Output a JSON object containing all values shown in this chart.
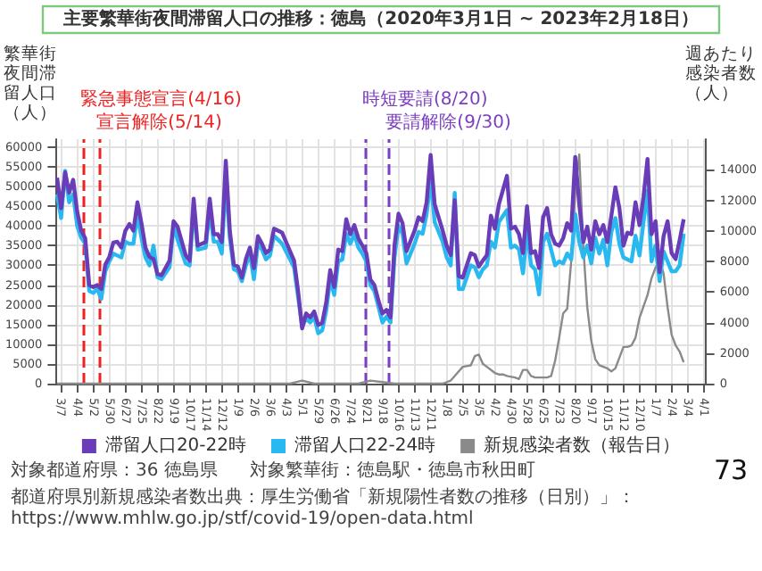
{
  "chart_data": {
    "type": "line",
    "title": "主要繁華街夜間滞留人口の推移：徳島（2020年3月1日 ~ 2023年2月18日）",
    "ylabel": "繁華街夜間滞留人口（人）",
    "y2label": "週あたり感染者数（人）",
    "x": [
      "2020-02-29",
      "2020-03-07",
      "2020-03-14",
      "2020-03-21",
      "2020-03-28",
      "2020-04-04",
      "2020-04-11",
      "2020-04-18",
      "2020-04-25",
      "2020-05-02",
      "2020-05-09",
      "2020-05-16",
      "2020-05-23",
      "2020-05-30",
      "2020-06-06",
      "2020-06-13",
      "2020-06-20",
      "2020-06-27",
      "2020-07-04",
      "2020-07-11",
      "2020-07-18",
      "2020-07-25",
      "2020-08-01",
      "2020-08-08",
      "2020-08-15",
      "2020-08-22",
      "2020-08-29",
      "2020-09-12",
      "2020-09-19",
      "2020-09-26",
      "2020-10-10",
      "2020-10-17",
      "2020-10-24",
      "2020-10-31",
      "2020-11-14",
      "2020-11-21",
      "2020-11-28",
      "2020-12-05",
      "2020-12-12",
      "2020-12-19",
      "2020-12-26",
      "2021-01-02",
      "2021-01-09",
      "2021-01-16",
      "2021-01-23",
      "2021-01-30",
      "2021-02-06",
      "2021-02-13",
      "2021-02-20",
      "2021-02-27",
      "2021-03-06",
      "2021-03-13",
      "2021-03-20",
      "2021-03-27",
      "2021-04-10",
      "2021-04-17",
      "2021-04-24",
      "2021-05-01",
      "2021-05-08",
      "2021-05-15",
      "2021-05-22",
      "2021-05-29",
      "2021-06-05",
      "2021-06-12",
      "2021-06-19",
      "2021-06-26",
      "2021-07-03",
      "2021-07-10",
      "2021-07-17",
      "2021-07-24",
      "2021-07-31",
      "2021-08-07",
      "2021-08-14",
      "2021-08-21",
      "2021-08-28",
      "2021-09-04",
      "2021-09-11",
      "2021-09-18",
      "2021-09-25",
      "2021-10-02",
      "2021-10-09",
      "2021-10-16",
      "2021-10-23",
      "2021-10-30",
      "2021-11-13",
      "2021-11-20",
      "2021-11-27",
      "2021-12-04",
      "2021-12-11",
      "2021-12-18",
      "2022-01-01",
      "2022-01-08",
      "2022-01-15",
      "2022-01-22",
      "2022-01-29",
      "2022-02-05",
      "2022-02-19",
      "2022-02-26",
      "2022-03-05",
      "2022-03-12",
      "2022-03-19",
      "2022-03-26",
      "2022-04-02",
      "2022-04-09",
      "2022-04-23",
      "2022-04-30",
      "2022-05-07",
      "2022-05-14",
      "2022-05-21",
      "2022-05-28",
      "2022-06-04",
      "2022-06-11",
      "2022-06-18",
      "2022-06-25",
      "2022-07-02",
      "2022-07-09",
      "2022-07-16",
      "2022-07-23",
      "2022-07-30",
      "2022-08-06",
      "2022-08-13",
      "2022-08-20",
      "2022-08-27",
      "2022-09-03",
      "2022-09-10",
      "2022-09-17",
      "2022-09-24",
      "2022-10-01",
      "2022-10-08",
      "2022-10-15",
      "2022-10-22",
      "2022-10-29",
      "2022-11-05",
      "2022-11-12",
      "2022-11-19",
      "2022-11-26",
      "2022-12-03",
      "2022-12-10",
      "2022-12-17",
      "2022-12-24",
      "2022-12-31",
      "2023-01-07",
      "2023-01-14",
      "2023-01-21",
      "2023-01-28",
      "2023-02-04",
      "2023-02-11",
      "2023-02-18",
      "2023-02-25"
    ],
    "series": [
      {
        "name": "滞留人口20-22時",
        "color": "#6a3db8",
        "values": [
          52200,
          44500,
          53600,
          48400,
          51700,
          43600,
          38800,
          36900,
          25000,
          24500,
          25000,
          24000,
          30200,
          32100,
          35800,
          36000,
          34500,
          38800,
          40500,
          38800,
          46000,
          40700,
          34500,
          32100,
          31600,
          27800,
          27500,
          31200,
          41200,
          39800,
          32600,
          31200,
          46900,
          35000,
          35900,
          46900,
          37900,
          37900,
          35900,
          56500,
          38800,
          30200,
          29700,
          26900,
          31600,
          34500,
          29300,
          37400,
          35500,
          33100,
          34000,
          39300,
          38800,
          38300,
          33600,
          31200,
          23500,
          14000,
          17800,
          16800,
          18300,
          14900,
          15400,
          20600,
          28800,
          24500,
          34000,
          33600,
          41700,
          37900,
          40200,
          36900,
          35000,
          33100,
          26400,
          25000,
          21100,
          17800,
          18700,
          16800,
          35000,
          43100,
          40700,
          33600,
          38800,
          42200,
          41200,
          46000,
          58000,
          45500,
          38800,
          35000,
          32600,
          46500,
          27300,
          26900,
          33100,
          32600,
          29700,
          31200,
          32600,
          42600,
          39300,
          45500,
          52700,
          39300,
          39800,
          37900,
          33100,
          45000,
          33100,
          33600,
          29300,
          42200,
          44500,
          37900,
          35500,
          35000,
          36900,
          40700,
          38800,
          57500,
          45500,
          35900,
          39800,
          34000,
          41200,
          37900,
          40200,
          35900,
          42600,
          49800,
          44500,
          35000,
          38300,
          37900,
          46000,
          40200,
          47400,
          57000,
          37900,
          41200,
          28300,
          37400,
          41200,
          33100,
          31600,
          36400,
          41700
        ]
      },
      {
        "name": "滞留人口22-24時",
        "color": "#29b8ef",
        "values": [
          48000,
          42000,
          54000,
          46000,
          48000,
          40000,
          37000,
          35500,
          23500,
          23000,
          24000,
          21500,
          28500,
          31000,
          33000,
          32500,
          32000,
          36000,
          35500,
          35500,
          43000,
          37000,
          32000,
          30000,
          35000,
          27000,
          26500,
          29500,
          40000,
          36500,
          30500,
          30000,
          45000,
          34000,
          34500,
          44000,
          36000,
          36000,
          33000,
          52000,
          37000,
          29000,
          28500,
          26000,
          30000,
          33000,
          26500,
          35500,
          34000,
          31500,
          32500,
          37500,
          36500,
          35500,
          31500,
          29500,
          22000,
          14500,
          16500,
          15500,
          17000,
          12800,
          13500,
          18500,
          26500,
          22500,
          31000,
          31500,
          38000,
          35500,
          38000,
          34500,
          33000,
          31000,
          25000,
          23500,
          19500,
          15500,
          17000,
          15500,
          32000,
          40000,
          38000,
          30500,
          35500,
          38500,
          38000,
          43000,
          52000,
          41000,
          36000,
          32000,
          30000,
          48400,
          24000,
          24000,
          30000,
          29500,
          27000,
          29000,
          30000,
          36000,
          34500,
          41000,
          44000,
          34500,
          35000,
          34000,
          28000,
          39000,
          30000,
          29000,
          22600,
          36000,
          38000,
          34000,
          30000,
          31000,
          30500,
          33000,
          31500,
          43000,
          36000,
          32000,
          35000,
          30500,
          37000,
          33000,
          36500,
          30000,
          38500,
          42000,
          35500,
          32000,
          31500,
          31000,
          37500,
          32500,
          41000,
          49000,
          31000,
          35000,
          26000,
          33500,
          31000,
          28500,
          28500,
          30000,
          38000
        ]
      },
      {
        "name": "新規感染者数（報告日）",
        "color": "#8a8a8a",
        "axis": "y2",
        "x": [
          "2020-02-29",
          "2021-04-10",
          "2021-05-01",
          "2021-05-22",
          "2021-08-07",
          "2021-08-28",
          "2021-09-18",
          "2021-10-09",
          "2022-01-01",
          "2022-01-15",
          "2022-02-05",
          "2022-02-19",
          "2022-02-26",
          "2022-03-05",
          "2022-03-12",
          "2022-03-19",
          "2022-04-02",
          "2022-04-09",
          "2022-04-16",
          "2022-04-23",
          "2022-05-07",
          "2022-05-14",
          "2022-05-21",
          "2022-05-28",
          "2022-06-04",
          "2022-06-11",
          "2022-06-18",
          "2022-07-02",
          "2022-07-09",
          "2022-07-16",
          "2022-07-23",
          "2022-07-30",
          "2022-08-06",
          "2022-08-13",
          "2022-08-20",
          "2022-08-27",
          "2022-09-03",
          "2022-09-10",
          "2022-09-17",
          "2022-09-24",
          "2022-10-01",
          "2022-10-08",
          "2022-10-15",
          "2022-10-22",
          "2022-10-29",
          "2022-11-05",
          "2022-11-12",
          "2022-11-19",
          "2022-11-26",
          "2022-12-03",
          "2022-12-10",
          "2022-12-24",
          "2022-12-31",
          "2023-01-07",
          "2023-01-14",
          "2023-01-21",
          "2023-01-28",
          "2023-02-04",
          "2023-02-11",
          "2023-02-18",
          "2023-02-25"
        ],
        "values": [
          0,
          0,
          200,
          0,
          0,
          200,
          100,
          0,
          0,
          200,
          1100,
          1200,
          1800,
          1900,
          1300,
          1100,
          700,
          600,
          600,
          500,
          400,
          300,
          900,
          900,
          500,
          400,
          400,
          400,
          500,
          1500,
          3000,
          4600,
          4900,
          8000,
          12500,
          15000,
          9000,
          5000,
          2800,
          1600,
          1200,
          1100,
          1000,
          800,
          1000,
          1700,
          2400,
          2400,
          2500,
          3000,
          4300,
          5800,
          6900,
          7600,
          8100,
          7200,
          5000,
          3200,
          2500,
          2100,
          1400
        ]
      }
    ],
    "xlim": [
      "2020-02-28",
      "2023-04-04"
    ],
    "xticks": [
      {
        "value": "2020-03-07",
        "label": "3/7"
      },
      {
        "value": "2020-04-04",
        "label": "4/4"
      },
      {
        "value": "2020-05-02",
        "label": "5/2"
      },
      {
        "value": "2020-05-30",
        "label": "5/30"
      },
      {
        "value": "2020-06-27",
        "label": "6/27"
      },
      {
        "value": "2020-07-25",
        "label": "7/25"
      },
      {
        "value": "2020-08-22",
        "label": "8/22"
      },
      {
        "value": "2020-09-19",
        "label": "9/19"
      },
      {
        "value": "2020-10-17",
        "label": "10/17"
      },
      {
        "value": "2020-11-14",
        "label": "11/14"
      },
      {
        "value": "2020-12-12",
        "label": "12/12"
      },
      {
        "value": "2021-01-09",
        "label": "1/9"
      },
      {
        "value": "2021-02-06",
        "label": "2/6"
      },
      {
        "value": "2021-03-06",
        "label": "3/6"
      },
      {
        "value": "2021-04-03",
        "label": "4/3"
      },
      {
        "value": "2021-05-01",
        "label": "5/1"
      },
      {
        "value": "2021-05-29",
        "label": "5/29"
      },
      {
        "value": "2021-06-26",
        "label": "6/26"
      },
      {
        "value": "2021-07-24",
        "label": "7/24"
      },
      {
        "value": "2021-08-21",
        "label": "8/21"
      },
      {
        "value": "2021-09-18",
        "label": "9/18"
      },
      {
        "value": "2021-10-16",
        "label": "10/16"
      },
      {
        "value": "2021-11-13",
        "label": "11/13"
      },
      {
        "value": "2021-12-11",
        "label": "12/11"
      },
      {
        "value": "2022-01-08",
        "label": "1/8"
      },
      {
        "value": "2022-02-05",
        "label": "2/5"
      },
      {
        "value": "2022-03-05",
        "label": "3/5"
      },
      {
        "value": "2022-04-02",
        "label": "4/2"
      },
      {
        "value": "2022-04-30",
        "label": "4/30"
      },
      {
        "value": "2022-05-28",
        "label": "5/28"
      },
      {
        "value": "2022-06-25",
        "label": "6/25"
      },
      {
        "value": "2022-07-23",
        "label": "7/23"
      },
      {
        "value": "2022-08-20",
        "label": "8/20"
      },
      {
        "value": "2022-09-17",
        "label": "9/17"
      },
      {
        "value": "2022-10-15",
        "label": "10/15"
      },
      {
        "value": "2022-11-12",
        "label": "11/12"
      },
      {
        "value": "2022-12-10",
        "label": "12/10"
      },
      {
        "value": "2023-01-07",
        "label": "1/7"
      },
      {
        "value": "2023-02-04",
        "label": "2/4"
      },
      {
        "value": "2023-03-04",
        "label": "3/4"
      },
      {
        "value": "2023-04-01",
        "label": "4/1"
      }
    ],
    "ylim": [
      0,
      62000
    ],
    "yticks": [
      0,
      5000,
      10000,
      15000,
      20000,
      25000,
      30000,
      35000,
      40000,
      45000,
      50000,
      55000,
      60000
    ],
    "y2lim": [
      0,
      16000
    ],
    "y2ticks": [
      0,
      2000,
      4000,
      6000,
      8000,
      10000,
      12000,
      14000
    ],
    "ref_lines": [
      {
        "axis": "x",
        "value": "2020-04-16",
        "label": "緊急事態宣言(4/16)",
        "color": "#ee2222",
        "line_style": "dashed"
      },
      {
        "axis": "x",
        "value": "2020-05-14",
        "label": "宣言解除(5/14)",
        "color": "#ee2222",
        "line_style": "dashed"
      },
      {
        "axis": "x",
        "value": "2021-08-20",
        "label": "時短要請(8/20)",
        "color": "#7b3fc0",
        "line_style": "dashed"
      },
      {
        "axis": "x",
        "value": "2021-09-30",
        "label": "要請解除(9/30)",
        "color": "#7b3fc0",
        "line_style": "dashed"
      }
    ],
    "grid": true,
    "legend": "bottom",
    "marker": "none",
    "annotations": [
      "対象都道府県：36 徳島県",
      "対象繁華街：徳島駅・徳島市秋田町",
      "都道府県別新規感染者数出典：厚生労働省「新規陽性者数の推移（日別）」：https://www.mhlw.go.jp/stf/covid-19/open-data.html",
      "73"
    ]
  }
}
